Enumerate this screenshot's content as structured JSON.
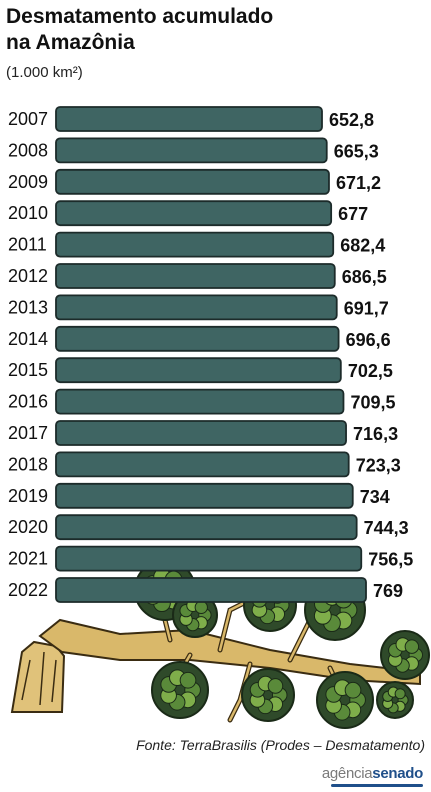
{
  "title": "Desmatamento acumulado\nna Amazônia",
  "unit": "(1.000 km²)",
  "source": "Fonte: TerraBrasilis (Prodes – Desmatamento)",
  "logo": {
    "part1": "agência",
    "part2": "senado"
  },
  "colors": {
    "bar": "#3f6563",
    "bar_outline": "#1c2b2a",
    "leaf": "#35512f",
    "trunk": "#d9b86a"
  },
  "chart_data": {
    "type": "bar",
    "orientation": "horizontal",
    "categories": [
      "2007",
      "2008",
      "2009",
      "2010",
      "2011",
      "2012",
      "2013",
      "2014",
      "2015",
      "2016",
      "2017",
      "2018",
      "2019",
      "2020",
      "2021",
      "2022"
    ],
    "values": [
      652.8,
      665.3,
      671.2,
      677,
      682.4,
      686.5,
      691.7,
      696.6,
      702.5,
      709.5,
      716.3,
      723.3,
      734,
      744.3,
      756.5,
      769
    ],
    "value_labels": [
      "652,8",
      "665,3",
      "671,2",
      "677",
      "682,4",
      "686,5",
      "691,7",
      "696,6",
      "702,5",
      "709,5",
      "716,3",
      "723,3",
      "734",
      "744,3",
      "756,5",
      "769"
    ],
    "title": "Desmatamento acumulado na Amazônia",
    "xlabel": "",
    "ylabel": "",
    "grid": false,
    "legend": "none"
  }
}
